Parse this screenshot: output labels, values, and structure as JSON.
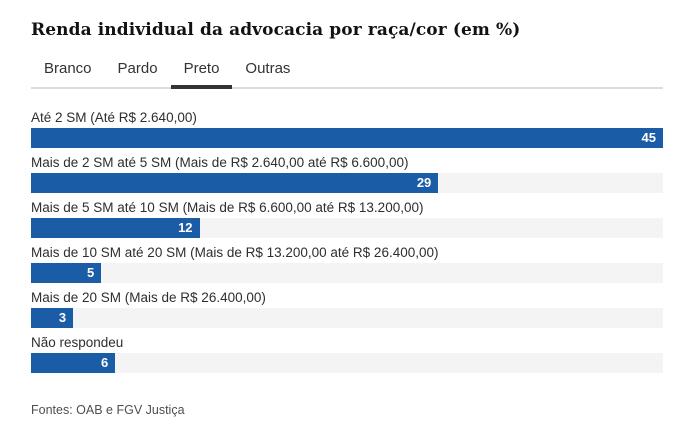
{
  "header": {
    "title": "Renda individual da advocacia por raça/cor (em %)"
  },
  "tabs": [
    {
      "label": "Branco",
      "active": false
    },
    {
      "label": "Pardo",
      "active": false
    },
    {
      "label": "Preto",
      "active": true
    },
    {
      "label": "Outras",
      "active": false
    }
  ],
  "chart_data": {
    "type": "bar",
    "orientation": "horizontal",
    "title": "Renda individual da advocacia por raça/cor (em %)",
    "selected_series": "Preto",
    "categories": [
      "Até 2 SM (Até R$ 2.640,00)",
      "Mais de 2 SM até 5 SM (Mais de R$ 2.640,00 até R$ 6.600,00)",
      "Mais de 5 SM até 10 SM (Mais de R$ 6.600,00 até R$ 13.200,00)",
      "Mais de 10 SM até 20 SM (Mais de R$ 13.200,00 até R$ 26.400,00)",
      "Mais de 20 SM (Mais de R$ 26.400,00)",
      "Não respondeu"
    ],
    "values": [
      45,
      29,
      12,
      5,
      3,
      6
    ],
    "xlim": [
      0,
      45
    ],
    "value_labels_inside_bar": true,
    "grid": false,
    "legend": false,
    "bar_color": "#1b5ca6",
    "track_color": "#f4f4f4"
  },
  "footer": {
    "source": "Fontes: OAB e FGV Justiça"
  }
}
